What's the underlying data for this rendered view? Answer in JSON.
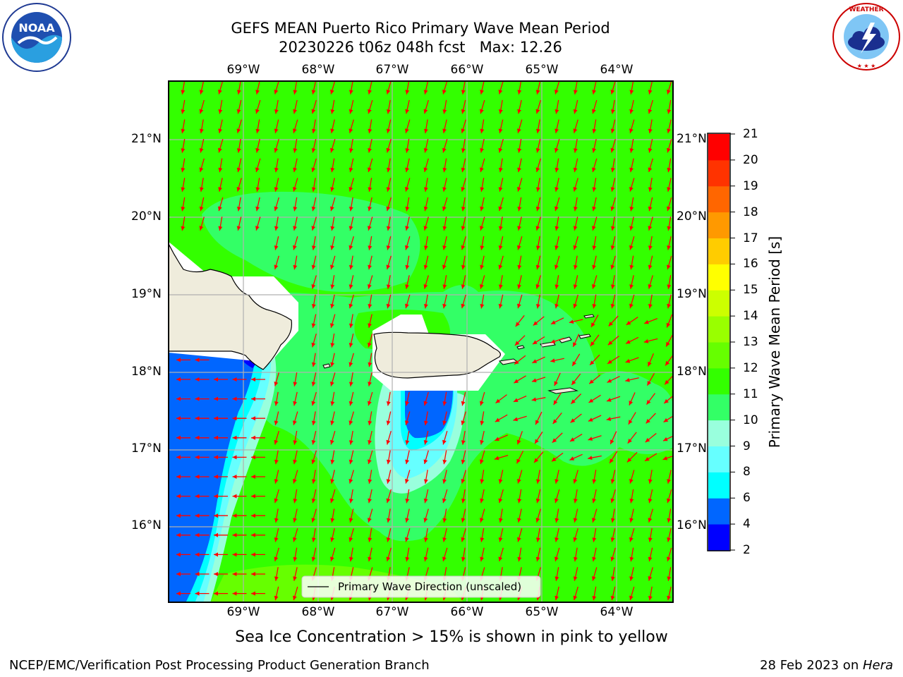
{
  "title": {
    "line1": "GEFS MEAN Puerto Rico Primary Wave Mean Period",
    "line2": "20230226 t06z 048h fcst   Max: 12.26"
  },
  "logos": {
    "left": "noaa-logo",
    "right": "nws-logo"
  },
  "map": {
    "lon_labels": [
      "69°W",
      "68°W",
      "67°W",
      "66°W",
      "65°W",
      "64°W"
    ],
    "lat_labels": [
      "21°N",
      "20°N",
      "19°N",
      "18°N",
      "17°N",
      "16°N"
    ],
    "legend_label": "Primary Wave Direction (unscaled)",
    "colors": {
      "land": "#efecdc",
      "arrow": "#ff0000",
      "grid": "#b0b0b0",
      "background": "#33ff00"
    }
  },
  "colorbar": {
    "label": "Primary Wave Mean Period [s]",
    "ticks": [
      "2",
      "4",
      "6",
      "8",
      "9",
      "10",
      "11",
      "12",
      "13",
      "14",
      "15",
      "16",
      "17",
      "18",
      "19",
      "20",
      "21"
    ],
    "colors": [
      "#0000ff",
      "#0066ff",
      "#00ffff",
      "#66ffff",
      "#99ffdd",
      "#33ff66",
      "#33ff00",
      "#66ff00",
      "#99ff00",
      "#ccff00",
      "#ffff00",
      "#ffcc00",
      "#ff9900",
      "#ff6600",
      "#ff3300",
      "#ff0000"
    ]
  },
  "note": "Sea Ice Concentration > 15% is shown in pink to yellow",
  "footer": {
    "left": "NCEP/EMC/Verification Post Processing Product Generation Branch",
    "date": "28 Feb 2023 on ",
    "system": "Hera"
  }
}
